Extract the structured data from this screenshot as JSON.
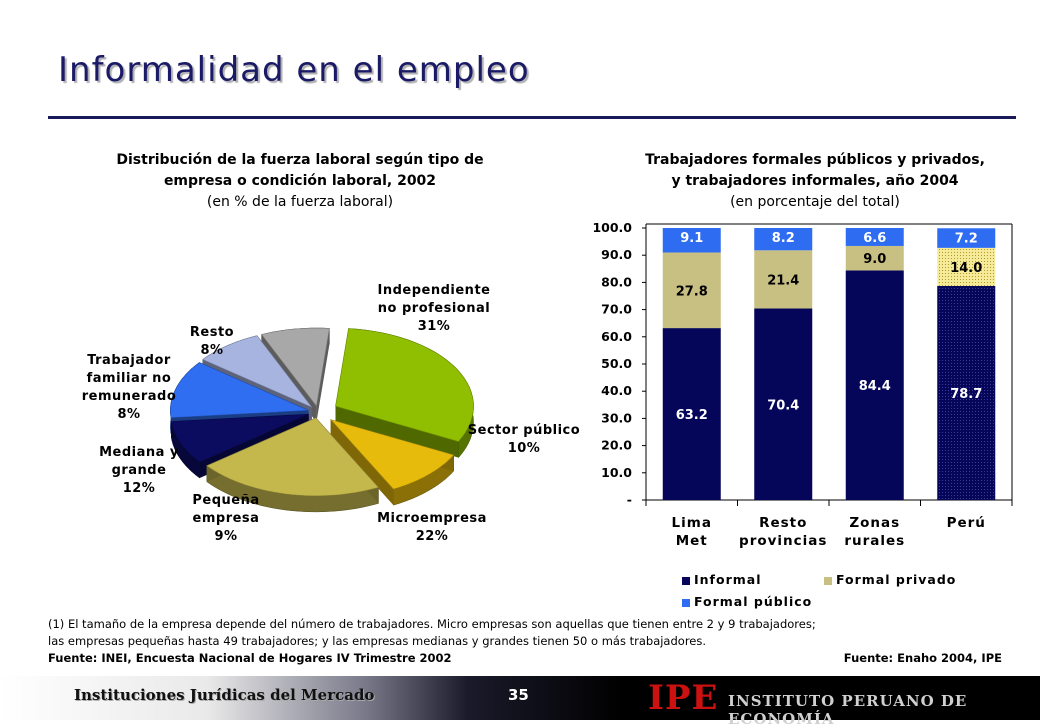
{
  "page": {
    "title": "Informalidad en el empleo",
    "footer_institution": "Instituciones Jurídicas del Mercado",
    "page_number": "35",
    "logo_mark": "IPE",
    "logo_text": "INSTITUTO PERUANO DE ECONOMÍA"
  },
  "left_chart": {
    "title_line1": "Distribución de la fuerza laboral según tipo de",
    "title_line2": "empresa o condición laboral, 2002",
    "subtitle": "(en % de la fuerza laboral)"
  },
  "right_chart": {
    "title_line1": "Trabajadores formales públicos y privados,",
    "title_line2": "y trabajadores informales, año 2004",
    "subtitle": "(en porcentaje del total)"
  },
  "chart_data": [
    {
      "type": "pie",
      "labels": [
        "Independiente no profesional",
        "Sector público",
        "Microempresa",
        "Pequeña empresa",
        "Mediana y grande",
        "Trabajador familiar no remunerado",
        "Resto"
      ],
      "values": [
        31,
        10,
        22,
        9,
        12,
        8,
        8
      ],
      "value_labels": [
        "31%",
        "10%",
        "22%",
        "9%",
        "12%",
        "8%",
        "8%"
      ],
      "colors": [
        "#8fbf00",
        "#e6bb0c",
        "#c4b84c",
        "#0b0b60",
        "#2f6ef0",
        "#a7b4e0",
        "#a8a8a8"
      ]
    },
    {
      "type": "bar",
      "stacked": true,
      "categories": [
        "Lima Met",
        "Resto provincias",
        "Zonas rurales",
        "Perú"
      ],
      "series": [
        {
          "name": "Informal",
          "values": [
            63.2,
            70.4,
            84.4,
            78.7
          ],
          "color": "#05055a"
        },
        {
          "name": "Formal privado",
          "values": [
            27.8,
            21.4,
            9.0,
            14.0
          ],
          "color": "#c8bf82"
        },
        {
          "name": "Formal público",
          "values": [
            9.1,
            8.2,
            6.6,
            7.2
          ],
          "color": "#2e6cf2"
        }
      ],
      "yticks": [
        "-",
        "10.0",
        "20.0",
        "30.0",
        "40.0",
        "50.0",
        "60.0",
        "70.0",
        "80.0",
        "90.0",
        "100.0"
      ],
      "ylim": [
        0,
        100
      ]
    }
  ],
  "notes": {
    "line1": "(1) El tamaño de la empresa depende del número de trabajadores. Micro empresas son aquellas que tienen entre 2 y 9 trabajadores;",
    "line2": "las empresas pequeñas hasta 49 trabajadores; y las empresas medianas y grandes tienen 50 o más trabajadores.",
    "source_left": "Fuente: INEI, Encuesta Nacional de Hogares IV Trimestre 2002",
    "source_right": "Fuente: Enaho 2004, IPE"
  }
}
